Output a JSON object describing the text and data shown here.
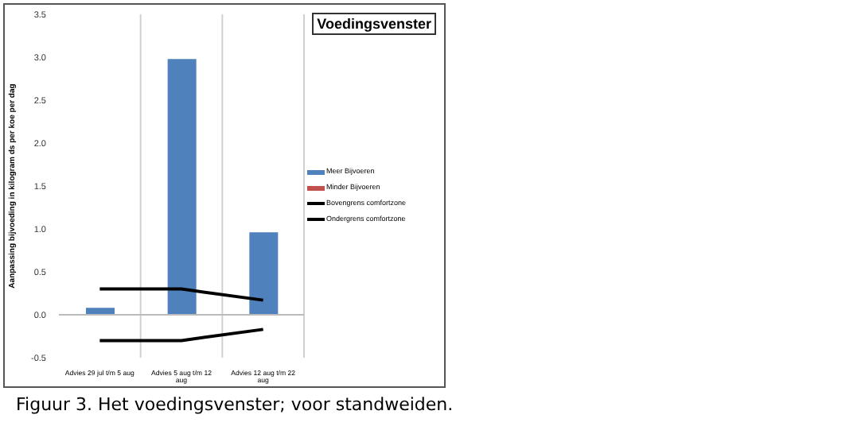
{
  "chart_data": {
    "type": "bar",
    "title": "Voedingsvenster",
    "ylabel": "Aanpassing bijvoeding in kilogram ds per koe per dag",
    "categories": [
      "Advies 29 jul t/m 5 aug",
      "Advies 5 aug t/m 12 aug",
      "Advies 12 aug t/m 22 aug"
    ],
    "series": [
      {
        "name": "Meer Bijvoeren",
        "color": "#4f81bd",
        "values": [
          0.08,
          2.98,
          0.96
        ]
      },
      {
        "name": "Minder Bijvoeren",
        "color": "#c0504d",
        "values": [
          null,
          null,
          null
        ]
      },
      {
        "name": "Bovengrens comfortzone",
        "type": "line",
        "color": "#000000",
        "values": [
          0.3,
          0.3,
          0.17
        ]
      },
      {
        "name": "Ondergrens comfortzone",
        "type": "line",
        "color": "#000000",
        "values": [
          -0.3,
          -0.3,
          -0.17
        ]
      }
    ],
    "ylim": [
      -0.5,
      3.5
    ],
    "yticks": [
      {
        "value": -0.5,
        "label": "-0.5"
      },
      {
        "value": 0,
        "label": "0.0"
      },
      {
        "value": 0.5,
        "label": "0.5"
      },
      {
        "value": 1,
        "label": "1.0"
      },
      {
        "value": 1.5,
        "label": "1.5"
      },
      {
        "value": 2,
        "label": "2.0"
      },
      {
        "value": 2.5,
        "label": "2.5"
      },
      {
        "value": 3,
        "label": "3.0"
      },
      {
        "value": 3.5,
        "label": "3.5"
      }
    ],
    "grid": "x",
    "legend": "right",
    "marker": "none",
    "annotations": [
      "Figuur 3. Het voedingsvenster;  voor standweiden."
    ]
  }
}
